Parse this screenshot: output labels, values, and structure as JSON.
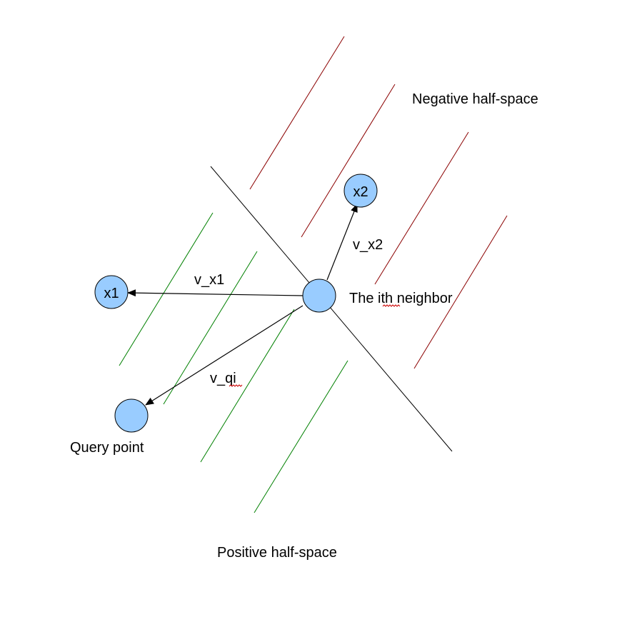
{
  "labels": {
    "negative_half_space": "Negative half-space",
    "positive_half_space": "Positive half-space",
    "ith_neighbor": "The ith neighbor",
    "query_point": "Query point",
    "v_x1": "v_x1",
    "v_x2": "v_x2",
    "v_qi": "v_qi",
    "x1": "x1",
    "x2": "x2"
  },
  "colors": {
    "point_fill": "#99ccff",
    "negative_hatch": "#8b0000",
    "positive_hatch": "#008000",
    "spellcheck_underline": "#cc0000"
  }
}
